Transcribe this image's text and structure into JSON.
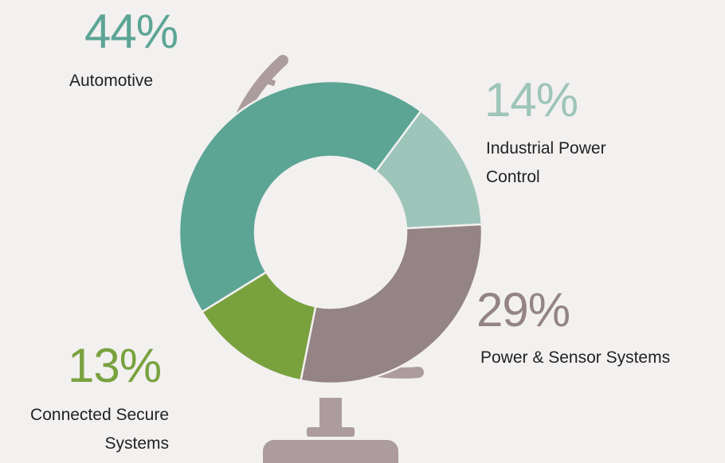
{
  "chart_data": {
    "type": "pie",
    "categories": [
      "Automotive",
      "Industrial Power Control",
      "Power & Sensor Systems",
      "Connected Secure Systems"
    ],
    "values": [
      44,
      14,
      29,
      13
    ],
    "value_labels": [
      "44%",
      "14%",
      "29%",
      "13%"
    ],
    "colors": [
      "#5ca595",
      "#9dc5b9",
      "#948486",
      "#79a23f"
    ]
  }
}
